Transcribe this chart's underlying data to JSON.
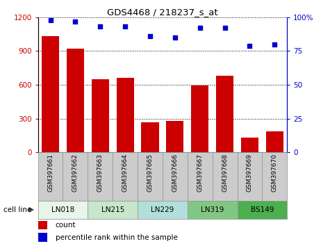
{
  "title": "GDS4468 / 218237_s_at",
  "samples": [
    "GSM397661",
    "GSM397662",
    "GSM397663",
    "GSM397664",
    "GSM397665",
    "GSM397666",
    "GSM397667",
    "GSM397668",
    "GSM397669",
    "GSM397670"
  ],
  "counts": [
    1030,
    920,
    650,
    665,
    265,
    280,
    595,
    680,
    130,
    190
  ],
  "percentile_ranks": [
    98,
    97,
    93,
    93,
    86,
    85,
    92,
    92,
    79,
    80
  ],
  "bar_color": "#cc0000",
  "dot_color": "#0000cc",
  "ylim_left": [
    0,
    1200
  ],
  "ylim_right": [
    0,
    100
  ],
  "yticks_left": [
    0,
    300,
    600,
    900,
    1200
  ],
  "yticks_right": [
    0,
    25,
    50,
    75,
    100
  ],
  "tick_color_left": "#cc0000",
  "tick_color_right": "#0000cc",
  "cell_lines": [
    {
      "name": "LN018",
      "start": 0,
      "end": 2,
      "color": "#e8f5e9"
    },
    {
      "name": "LN215",
      "start": 2,
      "end": 4,
      "color": "#c8e6c9"
    },
    {
      "name": "LN229",
      "start": 4,
      "end": 6,
      "color": "#b2dfdb"
    },
    {
      "name": "LN319",
      "start": 6,
      "end": 8,
      "color": "#81c784"
    },
    {
      "name": "BS149",
      "start": 8,
      "end": 10,
      "color": "#4caf50"
    }
  ],
  "sample_bg_color": "#cccccc",
  "sample_edge_color": "#999999",
  "grid_linestyle": "dotted",
  "grid_color": "#000000",
  "legend_bar_color": "#cc0000",
  "legend_dot_color": "#0000cc",
  "legend_count_label": "count",
  "legend_pct_label": "percentile rank within the sample",
  "cell_line_label": "cell line",
  "figure_bg": "#ffffff"
}
